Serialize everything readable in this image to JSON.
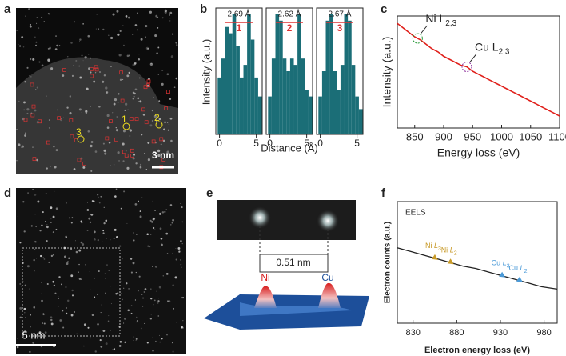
{
  "panel_labels": [
    "a",
    "b",
    "c",
    "d",
    "e",
    "f"
  ],
  "panel_a": {
    "scale_bar": "3 nm",
    "sites": [
      "1",
      "2",
      "3"
    ]
  },
  "panel_d": {
    "scale_bar": "5 nm"
  },
  "panel_e": {
    "left_atom": "Ni",
    "right_atom": "Cu",
    "distance": "0.51 nm"
  },
  "chart_data": [
    {
      "type": "histogram",
      "x_label": "Distance (Å)",
      "y_label": "Intensity (a.u.)",
      "color": "#1b6e77",
      "xlim": [
        -0.5,
        5.8
      ],
      "ylim": [
        0,
        1
      ],
      "xticks": [
        0,
        5
      ],
      "panels": [
        {
          "label": "2.69 Å",
          "marker": "1",
          "bins": [
            -0.25,
            0.25,
            0.75,
            1.25,
            1.75,
            2.25,
            2.75,
            3.25,
            3.75,
            4.25,
            4.75,
            5.25,
            5.75
          ],
          "values": [
            0.45,
            0.6,
            0.85,
            0.8,
            0.95,
            0.7,
            0.45,
            0.55,
            0.95,
            0.75,
            0.45,
            0.3
          ]
        },
        {
          "label": "2.62 Å",
          "marker": "2",
          "bins": [
            -0.25,
            0.25,
            0.75,
            1.25,
            1.75,
            2.25,
            2.75,
            3.25,
            3.75,
            4.25,
            4.75,
            5.25,
            5.75
          ],
          "values": [
            0.3,
            0.6,
            0.95,
            0.9,
            0.6,
            0.5,
            0.6,
            0.55,
            0.95,
            0.6,
            0.35,
            0.3
          ]
        },
        {
          "label": "2.67 Å",
          "marker": "3",
          "bins": [
            -0.25,
            0.25,
            0.75,
            1.25,
            1.75,
            2.25,
            2.75,
            3.25,
            3.75,
            4.25,
            4.75,
            5.25,
            5.75
          ],
          "values": [
            0.3,
            0.5,
            0.9,
            0.95,
            0.5,
            0.35,
            0.55,
            0.95,
            0.9,
            0.55,
            0.3,
            0.2
          ]
        }
      ]
    },
    {
      "type": "line",
      "x_label": "Energy loss (eV)",
      "y_label": "Intensity (a.u.)",
      "color": "#e0201b",
      "xlim": [
        820,
        1100
      ],
      "ylim": [
        0.3,
        1.05
      ],
      "xticks": [
        850,
        900,
        950,
        1000,
        1050,
        1100
      ],
      "x": [
        820,
        830,
        840,
        850,
        860,
        870,
        880,
        890,
        900,
        910,
        920,
        930,
        940,
        950,
        960,
        970,
        980,
        990,
        1000,
        1010,
        1020,
        1030,
        1040,
        1050,
        1060,
        1070,
        1080,
        1090,
        1100
      ],
      "values": [
        1.0,
        0.97,
        0.94,
        0.91,
        0.89,
        0.86,
        0.83,
        0.81,
        0.78,
        0.76,
        0.74,
        0.72,
        0.71,
        0.68,
        0.66,
        0.64,
        0.62,
        0.6,
        0.58,
        0.56,
        0.54,
        0.52,
        0.5,
        0.48,
        0.46,
        0.44,
        0.42,
        0.4,
        0.38
      ],
      "annotations": [
        {
          "text": "Ni L",
          "subscript": "2,3",
          "x": 855,
          "color": "#2a9a3a"
        },
        {
          "text": "Cu L",
          "subscript": "2,3",
          "x": 940,
          "color": "#8a2a9a"
        }
      ]
    },
    {
      "type": "line",
      "x_label": "Electron energy loss (eV)",
      "y_label": "Electron counts (a.u.)",
      "inset_label": "EELS",
      "color": "#222222",
      "xlim": [
        812,
        995
      ],
      "ylim": [
        0,
        1
      ],
      "xticks": [
        830,
        880,
        930,
        980
      ],
      "x": [
        812,
        827,
        842,
        857,
        872,
        887,
        902,
        917,
        932,
        947,
        962,
        977,
        995
      ],
      "values": [
        0.62,
        0.59,
        0.56,
        0.53,
        0.5,
        0.47,
        0.45,
        0.42,
        0.39,
        0.36,
        0.33,
        0.3,
        0.28
      ],
      "annotations": [
        {
          "text": "Ni",
          "edge": "L",
          "subscript": "3",
          "x": 855,
          "color": "#c89a28"
        },
        {
          "text": "Ni",
          "edge": "L",
          "subscript": "2",
          "x": 873,
          "color": "#c89a28"
        },
        {
          "text": "Cu",
          "edge": "L",
          "subscript": "3",
          "x": 932,
          "color": "#4a9ad8"
        },
        {
          "text": "Cu",
          "edge": "L",
          "subscript": "2",
          "x": 952,
          "color": "#4a9ad8"
        }
      ]
    }
  ]
}
